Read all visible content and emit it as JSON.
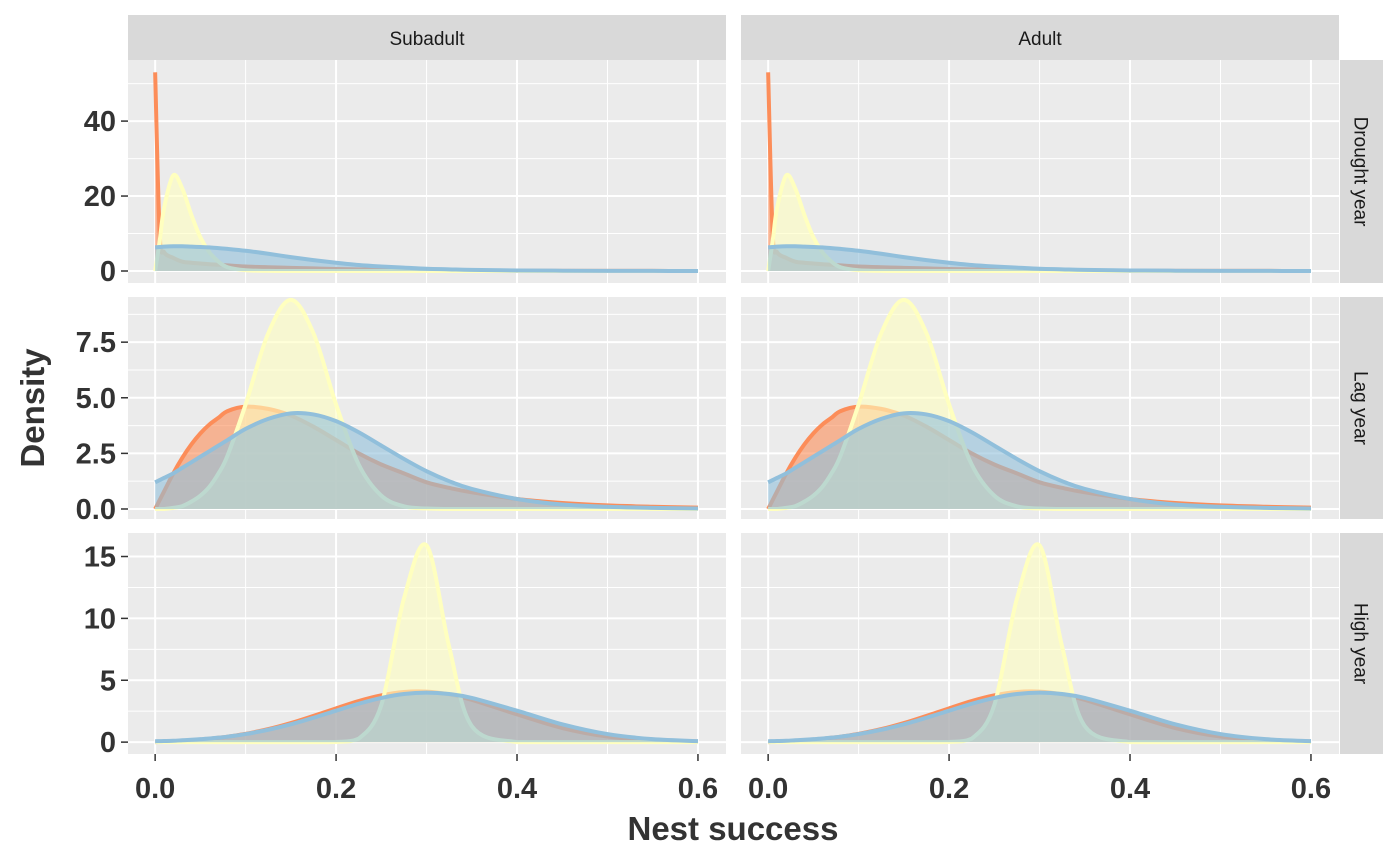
{
  "chart_data": {
    "type": "area",
    "facet_columns": [
      "Subadult",
      "Adult"
    ],
    "xlabel": "Nest success",
    "ylabel": "Density",
    "xlim": [
      -0.03,
      0.631
    ],
    "x_ticks": [
      0,
      0.2,
      0.4,
      0.6
    ],
    "x_tick_labels": [
      "0.0",
      "0.2",
      "0.4",
      "0.6"
    ],
    "grid": true,
    "colors": {
      "orange": "#FC8D59",
      "yellow": "#FFFFBF",
      "blue": "#91BFDB",
      "panel_bg": "#EBEBEB",
      "strip_bg": "#D9D9D9"
    },
    "x": [
      0,
      0.005,
      0.01,
      0.02,
      0.03,
      0.04,
      0.05,
      0.06,
      0.07,
      0.08,
      0.1,
      0.125,
      0.15,
      0.175,
      0.2,
      0.225,
      0.25,
      0.275,
      0.3,
      0.325,
      0.35,
      0.4,
      0.45,
      0.5,
      0.55,
      0.6
    ],
    "rows": [
      {
        "label": "Drought year",
        "ylim": [
          -3.2,
          56.3
        ],
        "y_ticks": [
          0,
          20,
          40
        ],
        "y_tick_labels": [
          "0",
          "20",
          "40"
        ],
        "series": [
          {
            "color": "#FC8D59",
            "y": [
              53,
              10,
              5,
              3.5,
              2.5,
              2.2,
              2,
              1.8,
              1.7,
              1.5,
              1.2,
              1.0,
              0.85,
              0.7,
              0.55,
              0.45,
              0.35,
              0.28,
              0.22,
              0.17,
              0.13,
              0.08,
              0.05,
              0.03,
              0.02,
              0.01
            ]
          },
          {
            "color": "#FFFFBF",
            "y": [
              0,
              8,
              17,
              25.5,
              22,
              15,
              9,
              5,
              2.5,
              1,
              0.2,
              0.03,
              0,
              0,
              0,
              0,
              0,
              0,
              0,
              0,
              0,
              0,
              0,
              0,
              0,
              0
            ]
          },
          {
            "color": "#91BFDB",
            "y": [
              6.3,
              6.4,
              6.5,
              6.6,
              6.6,
              6.5,
              6.4,
              6.3,
              6.1,
              5.9,
              5.4,
              4.6,
              3.7,
              2.9,
              2.2,
              1.6,
              1.2,
              0.9,
              0.6,
              0.45,
              0.3,
              0.15,
              0.08,
              0.04,
              0.02,
              0.01
            ]
          }
        ]
      },
      {
        "label": "Lag year",
        "ylim": [
          -0.45,
          9.53
        ],
        "y_ticks": [
          0,
          2.5,
          5,
          7.5
        ],
        "y_tick_labels": [
          "0.0",
          "2.5",
          "5.0",
          "7.5"
        ],
        "series": [
          {
            "color": "#FC8D59",
            "y": [
              0,
              0.4,
              0.8,
              1.6,
              2.3,
              2.9,
              3.4,
              3.8,
              4.1,
              4.4,
              4.6,
              4.5,
              4.2,
              3.7,
              3.1,
              2.5,
              2.0,
              1.6,
              1.2,
              0.95,
              0.75,
              0.45,
              0.27,
              0.16,
              0.1,
              0.06
            ]
          },
          {
            "color": "#FFFFBF",
            "y": [
              0,
              0,
              0,
              0.05,
              0.13,
              0.33,
              0.6,
              1.0,
              1.6,
              2.4,
              4.7,
              7.9,
              9.4,
              7.9,
              4.7,
              2.0,
              0.6,
              0.12,
              0.02,
              0,
              0,
              0,
              0,
              0,
              0,
              0
            ]
          },
          {
            "color": "#91BFDB",
            "y": [
              1.2,
              1.3,
              1.4,
              1.6,
              1.85,
              2.1,
              2.35,
              2.6,
              2.85,
              3.1,
              3.6,
              4.05,
              4.3,
              4.25,
              3.95,
              3.45,
              2.85,
              2.25,
              1.7,
              1.25,
              0.9,
              0.45,
              0.2,
              0.1,
              0.05,
              0.02
            ]
          }
        ]
      },
      {
        "label": "High year",
        "ylim": [
          -0.96,
          16.9
        ],
        "y_ticks": [
          0,
          5,
          10,
          15
        ],
        "y_tick_labels": [
          "0",
          "5",
          "10",
          "15"
        ],
        "series": [
          {
            "color": "#FC8D59",
            "y": [
              0,
              0.01,
              0.02,
              0.05,
              0.09,
              0.14,
              0.2,
              0.27,
              0.35,
              0.44,
              0.67,
              1.05,
              1.54,
              2.12,
              2.73,
              3.32,
              3.78,
              4.05,
              4.08,
              3.86,
              3.42,
              2.24,
              1.14,
              0.45,
              0.16,
              0.06
            ]
          },
          {
            "color": "#FFFFBF",
            "y": [
              0,
              0,
              0,
              0,
              0,
              0,
              0,
              0,
              0,
              0,
              0,
              0,
              0,
              0,
              0.01,
              0.28,
              3.0,
              11.6,
              15.9,
              7.7,
              1.3,
              0,
              0,
              0,
              0,
              0
            ]
          },
          {
            "color": "#91BFDB",
            "y": [
              0.07,
              0.08,
              0.09,
              0.11,
              0.15,
              0.19,
              0.24,
              0.29,
              0.36,
              0.44,
              0.65,
              1.0,
              1.44,
              1.97,
              2.54,
              3.1,
              3.57,
              3.89,
              4.0,
              3.89,
              3.57,
              2.54,
              1.44,
              0.65,
              0.24,
              0.08
            ]
          }
        ]
      }
    ]
  }
}
